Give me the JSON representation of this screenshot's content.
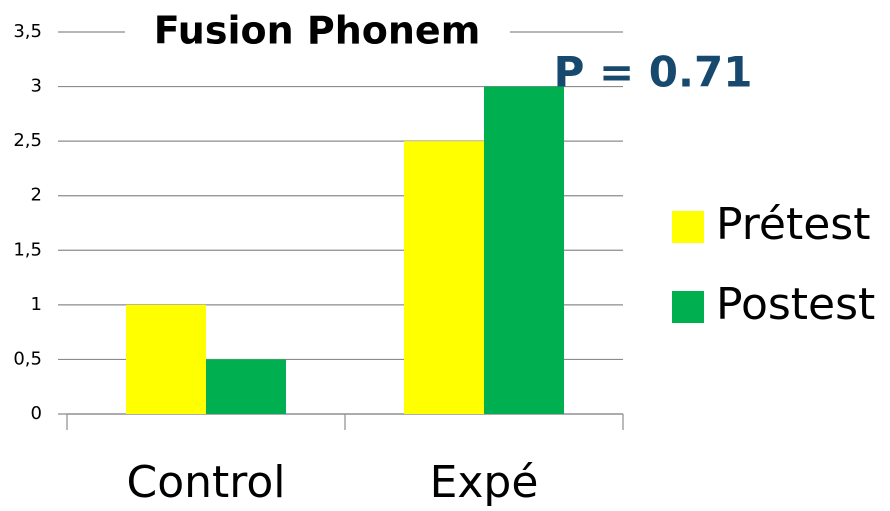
{
  "chart_data": {
    "type": "bar",
    "title": "Fusion Phonem",
    "annotation": "P = 0.71",
    "categories": [
      "Control",
      "Expé"
    ],
    "series": [
      {
        "name": "Prétest",
        "color": "#ffff00",
        "values": [
          1,
          2.5
        ]
      },
      {
        "name": "Postest",
        "color": "#00b050",
        "values": [
          0.5,
          3
        ]
      }
    ],
    "ylim": [
      0,
      3.5
    ],
    "yticks": [
      0,
      {
        "value": 0.5,
        "label": "0,5"
      },
      1,
      {
        "value": 1.5,
        "label": "1,5"
      },
      2,
      {
        "value": 2.5,
        "label": "2,5"
      },
      3,
      {
        "value": 3.5,
        "label": "3,5"
      }
    ],
    "grid": true,
    "legend": "right"
  }
}
